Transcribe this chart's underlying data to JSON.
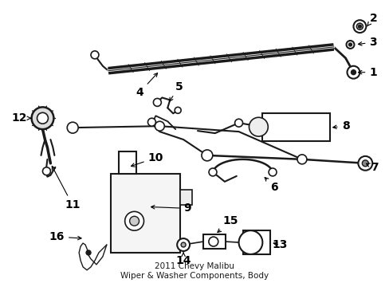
{
  "title": "2011 Chevy Malibu\nWiper & Washer Components, Body",
  "background_color": "#ffffff",
  "diagram_color": "#1a1a1a",
  "fig_width": 4.89,
  "fig_height": 3.6,
  "dpi": 100,
  "title_fontsize": 7.5,
  "label_fontsize": 10
}
